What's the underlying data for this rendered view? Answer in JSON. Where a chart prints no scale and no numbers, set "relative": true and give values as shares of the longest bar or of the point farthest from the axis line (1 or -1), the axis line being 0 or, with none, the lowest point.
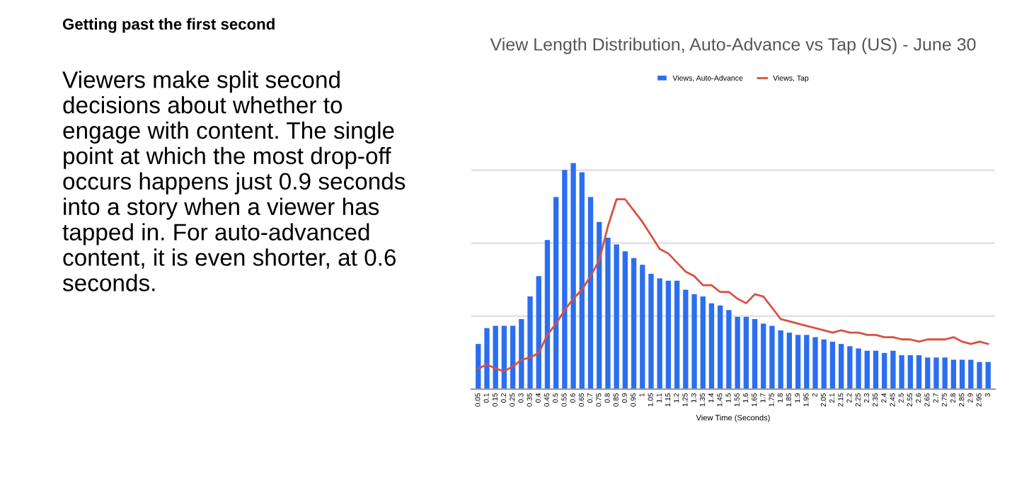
{
  "chart_data": {
    "type": "bar",
    "title": "View Length Distribution, Auto-Advance vs Tap (US) - June 30",
    "xlabel": "View Time (Seconds)",
    "annotations": [
      "Getting past the first second",
      "Viewers make split second decisions about whether to engage with content. The single point at which the most drop-off occurs happens just 0.9 seconds into a story when a viewer has tapped in. For auto-advanced content, it is even shorter, at 0.6 seconds."
    ],
    "categories": [
      "0.05",
      "0.1",
      "0.15",
      "0.2",
      "0.25",
      "0.3",
      "0.35",
      "0.4",
      "0.45",
      "0.5",
      "0.55",
      "0.6",
      "0.65",
      "0.7",
      "0.75",
      "0.8",
      "0.85",
      "0.9",
      "0.95",
      "1",
      "1.05",
      "1.1",
      "1.15",
      "1.2",
      "1.25",
      "1.3",
      "1.35",
      "1.4",
      "1.45",
      "1.5",
      "1.55",
      "1.6",
      "1.65",
      "1.7",
      "1.75",
      "1.8",
      "1.85",
      "1.9",
      "1.95",
      "2",
      "2.05",
      "2.1",
      "2.15",
      "2.2",
      "2.25",
      "2.3",
      "2.35",
      "2.4",
      "2.45",
      "2.5",
      "2.55",
      "2.6",
      "2.65",
      "2.7",
      "2.75",
      "2.8",
      "2.85",
      "2.9",
      "2.95",
      "3"
    ],
    "relative": true,
    "grid": "y",
    "legend": "top",
    "series": [
      {
        "name": "Views, Auto-Advance",
        "color": "#2b6ef0",
        "values": [
          0.2,
          0.27,
          0.28,
          0.28,
          0.28,
          0.31,
          0.41,
          0.5,
          0.66,
          0.85,
          0.97,
          1,
          0.96,
          0.85,
          0.74,
          0.67,
          0.64,
          0.61,
          0.58,
          0.55,
          0.51,
          0.49,
          0.48,
          0.48,
          0.44,
          0.42,
          0.41,
          0.38,
          0.37,
          0.35,
          0.32,
          0.32,
          0.31,
          0.29,
          0.28,
          0.26,
          0.25,
          0.24,
          0.24,
          0.23,
          0.22,
          0.21,
          0.2,
          0.19,
          0.18,
          0.17,
          0.17,
          0.16,
          0.17,
          0.15,
          0.15,
          0.15,
          0.14,
          0.14,
          0.14,
          0.13,
          0.13,
          0.13,
          0.12,
          0.12
        ]
      },
      {
        "name": "Views, Tap",
        "type": "line",
        "color": "#d9503f",
        "values": [
          0.09,
          0.11,
          0.09,
          0.08,
          0.1,
          0.13,
          0.14,
          0.16,
          0.24,
          0.29,
          0.35,
          0.4,
          0.44,
          0.5,
          0.57,
          0.72,
          0.84,
          0.84,
          0.79,
          0.74,
          0.68,
          0.62,
          0.6,
          0.56,
          0.52,
          0.5,
          0.46,
          0.46,
          0.43,
          0.43,
          0.4,
          0.38,
          0.42,
          0.41,
          0.36,
          0.31,
          0.3,
          0.29,
          0.28,
          0.27,
          0.26,
          0.25,
          0.26,
          0.25,
          0.25,
          0.24,
          0.24,
          0.23,
          0.23,
          0.22,
          0.22,
          0.21,
          0.22,
          0.22,
          0.22,
          0.23,
          0.21,
          0.2,
          0.21,
          0.2
        ]
      }
    ]
  }
}
